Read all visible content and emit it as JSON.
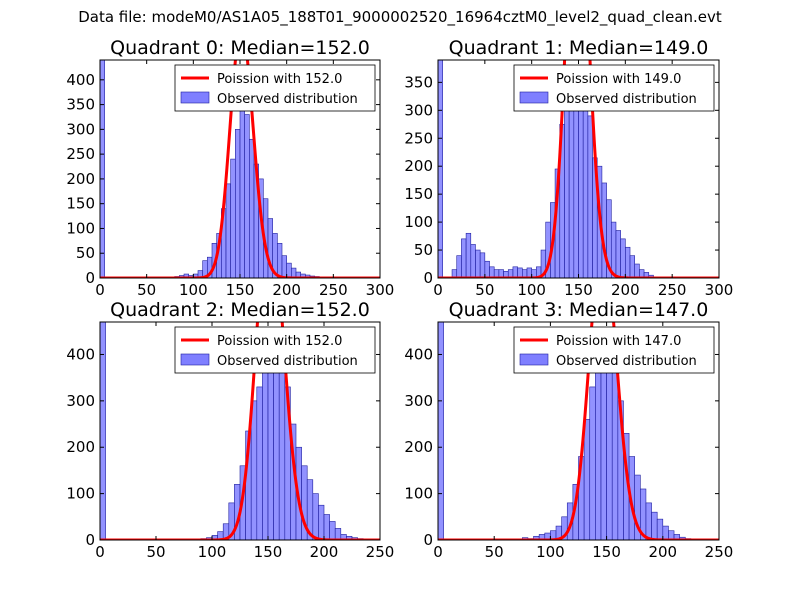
{
  "suptitle": "Data file: modeM0/AS1A05_188T01_9000002520_16964cztM0_level2_quad_clean.evt",
  "colors": {
    "hist_fill": "#7f7fff",
    "hist_edge": "#1f1f9f",
    "poisson_line": "#ff0000",
    "axis": "#000000"
  },
  "chart_data": [
    {
      "type": "bar",
      "title": "Quadrant 0: Median=152.0",
      "median": 152.0,
      "xlim": [
        0,
        300
      ],
      "ylim": [
        0,
        440
      ],
      "xticks": [
        0,
        50,
        100,
        150,
        200,
        250,
        300
      ],
      "yticks": [
        0,
        50,
        100,
        150,
        200,
        250,
        300,
        350,
        400
      ],
      "legend": {
        "location": "top-right",
        "line_label": "Poission with 152.0",
        "bar_label": "Observed distribution"
      },
      "bin_width": 5,
      "bins": [
        [
          0,
          440
        ],
        [
          80,
          3
        ],
        [
          85,
          5
        ],
        [
          90,
          8
        ],
        [
          95,
          5
        ],
        [
          100,
          8
        ],
        [
          105,
          15
        ],
        [
          110,
          35
        ],
        [
          115,
          42
        ],
        [
          120,
          70
        ],
        [
          125,
          90
        ],
        [
          130,
          140
        ],
        [
          135,
          190
        ],
        [
          140,
          240
        ],
        [
          145,
          300
        ],
        [
          150,
          350
        ],
        [
          155,
          330
        ],
        [
          160,
          280
        ],
        [
          165,
          230
        ],
        [
          170,
          200
        ],
        [
          175,
          160
        ],
        [
          180,
          120
        ],
        [
          185,
          90
        ],
        [
          190,
          70
        ],
        [
          195,
          45
        ],
        [
          200,
          30
        ],
        [
          205,
          20
        ],
        [
          210,
          12
        ],
        [
          215,
          8
        ],
        [
          220,
          6
        ],
        [
          225,
          4
        ],
        [
          230,
          3
        ],
        [
          235,
          2
        ],
        [
          240,
          2
        ],
        [
          245,
          1
        ],
        [
          250,
          1
        ]
      ]
    },
    {
      "type": "bar",
      "title": "Quadrant 1: Median=149.0",
      "median": 149.0,
      "xlim": [
        0,
        300
      ],
      "ylim": [
        0,
        390
      ],
      "xticks": [
        0,
        50,
        100,
        150,
        200,
        250,
        300
      ],
      "yticks": [
        0,
        50,
        100,
        150,
        200,
        250,
        300,
        350
      ],
      "legend": {
        "location": "top-right",
        "line_label": "Poission with 149.0",
        "bar_label": "Observed distribution"
      },
      "bin_width": 5,
      "bins": [
        [
          0,
          390
        ],
        [
          15,
          15
        ],
        [
          20,
          40
        ],
        [
          25,
          70
        ],
        [
          30,
          80
        ],
        [
          35,
          60
        ],
        [
          40,
          50
        ],
        [
          45,
          45
        ],
        [
          50,
          30
        ],
        [
          55,
          20
        ],
        [
          60,
          15
        ],
        [
          65,
          15
        ],
        [
          70,
          12
        ],
        [
          75,
          15
        ],
        [
          80,
          20
        ],
        [
          85,
          18
        ],
        [
          90,
          15
        ],
        [
          95,
          18
        ],
        [
          100,
          15
        ],
        [
          105,
          20
        ],
        [
          110,
          50
        ],
        [
          115,
          100
        ],
        [
          120,
          135
        ],
        [
          125,
          195
        ],
        [
          130,
          275
        ],
        [
          135,
          320
        ],
        [
          140,
          345
        ],
        [
          145,
          360
        ],
        [
          150,
          340
        ],
        [
          155,
          310
        ],
        [
          160,
          290
        ],
        [
          165,
          215
        ],
        [
          170,
          200
        ],
        [
          175,
          170
        ],
        [
          180,
          140
        ],
        [
          185,
          100
        ],
        [
          190,
          85
        ],
        [
          195,
          70
        ],
        [
          200,
          55
        ],
        [
          205,
          40
        ],
        [
          210,
          25
        ],
        [
          215,
          15
        ],
        [
          220,
          10
        ],
        [
          225,
          5
        ]
      ]
    },
    {
      "type": "bar",
      "title": "Quadrant 2: Median=152.0",
      "median": 152.0,
      "xlim": [
        0,
        250
      ],
      "ylim": [
        0,
        470
      ],
      "xticks": [
        0,
        50,
        100,
        150,
        200,
        250
      ],
      "yticks": [
        0,
        100,
        200,
        300,
        400
      ],
      "legend": {
        "location": "top-right",
        "line_label": "Poission with 152.0",
        "bar_label": "Observed distribution"
      },
      "bin_width": 5,
      "bins": [
        [
          0,
          470
        ],
        [
          90,
          3
        ],
        [
          95,
          5
        ],
        [
          100,
          10
        ],
        [
          105,
          18
        ],
        [
          110,
          35
        ],
        [
          115,
          80
        ],
        [
          120,
          120
        ],
        [
          125,
          160
        ],
        [
          130,
          235
        ],
        [
          135,
          300
        ],
        [
          140,
          330
        ],
        [
          145,
          400
        ],
        [
          150,
          450
        ],
        [
          155,
          420
        ],
        [
          160,
          370
        ],
        [
          165,
          330
        ],
        [
          170,
          250
        ],
        [
          175,
          200
        ],
        [
          180,
          160
        ],
        [
          185,
          130
        ],
        [
          190,
          100
        ],
        [
          195,
          75
        ],
        [
          200,
          55
        ],
        [
          205,
          40
        ],
        [
          210,
          25
        ],
        [
          215,
          12
        ],
        [
          220,
          8
        ],
        [
          225,
          5
        ],
        [
          230,
          3
        ],
        [
          235,
          2
        ]
      ]
    },
    {
      "type": "bar",
      "title": "Quadrant 3: Median=147.0",
      "median": 147.0,
      "xlim": [
        0,
        250
      ],
      "ylim": [
        0,
        470
      ],
      "xticks": [
        0,
        50,
        100,
        150,
        200,
        250
      ],
      "yticks": [
        0,
        100,
        200,
        300,
        400
      ],
      "legend": {
        "location": "top-right",
        "line_label": "Poission with 147.0",
        "bar_label": "Observed distribution"
      },
      "bin_width": 5,
      "bins": [
        [
          0,
          470
        ],
        [
          75,
          5
        ],
        [
          80,
          3
        ],
        [
          85,
          8
        ],
        [
          90,
          12
        ],
        [
          95,
          15
        ],
        [
          100,
          20
        ],
        [
          105,
          30
        ],
        [
          110,
          50
        ],
        [
          115,
          80
        ],
        [
          120,
          120
        ],
        [
          125,
          180
        ],
        [
          130,
          260
        ],
        [
          135,
          330
        ],
        [
          140,
          380
        ],
        [
          145,
          420
        ],
        [
          150,
          410
        ],
        [
          155,
          370
        ],
        [
          160,
          300
        ],
        [
          165,
          230
        ],
        [
          170,
          180
        ],
        [
          175,
          140
        ],
        [
          180,
          110
        ],
        [
          185,
          80
        ],
        [
          190,
          60
        ],
        [
          195,
          45
        ],
        [
          200,
          30
        ],
        [
          205,
          20
        ],
        [
          210,
          12
        ],
        [
          215,
          6
        ],
        [
          220,
          3
        ]
      ]
    }
  ]
}
